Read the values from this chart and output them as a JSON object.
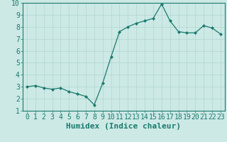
{
  "x": [
    0,
    1,
    2,
    3,
    4,
    5,
    6,
    7,
    8,
    9,
    10,
    11,
    12,
    13,
    14,
    15,
    16,
    17,
    18,
    19,
    20,
    21,
    22,
    23
  ],
  "y": [
    3.0,
    3.1,
    2.9,
    2.8,
    2.9,
    2.6,
    2.4,
    2.2,
    1.5,
    3.3,
    5.5,
    7.6,
    8.0,
    8.3,
    8.5,
    8.7,
    9.9,
    8.5,
    7.6,
    7.5,
    7.5,
    8.1,
    7.9,
    7.4
  ],
  "line_color": "#1a7a6e",
  "marker_color": "#1a7a6e",
  "bg_color": "#cce9e5",
  "grid_color": "#b0d5d0",
  "xlabel": "Humidex (Indice chaleur)",
  "xlim": [
    -0.5,
    23.5
  ],
  "ylim": [
    1,
    10
  ],
  "xtick_labels": [
    "0",
    "1",
    "2",
    "3",
    "4",
    "5",
    "6",
    "7",
    "8",
    "9",
    "10",
    "11",
    "12",
    "13",
    "14",
    "15",
    "16",
    "17",
    "18",
    "19",
    "20",
    "21",
    "22",
    "23"
  ],
  "ytick_values": [
    1,
    2,
    3,
    4,
    5,
    6,
    7,
    8,
    9,
    10
  ],
  "xlabel_fontsize": 8,
  "tick_fontsize": 7
}
